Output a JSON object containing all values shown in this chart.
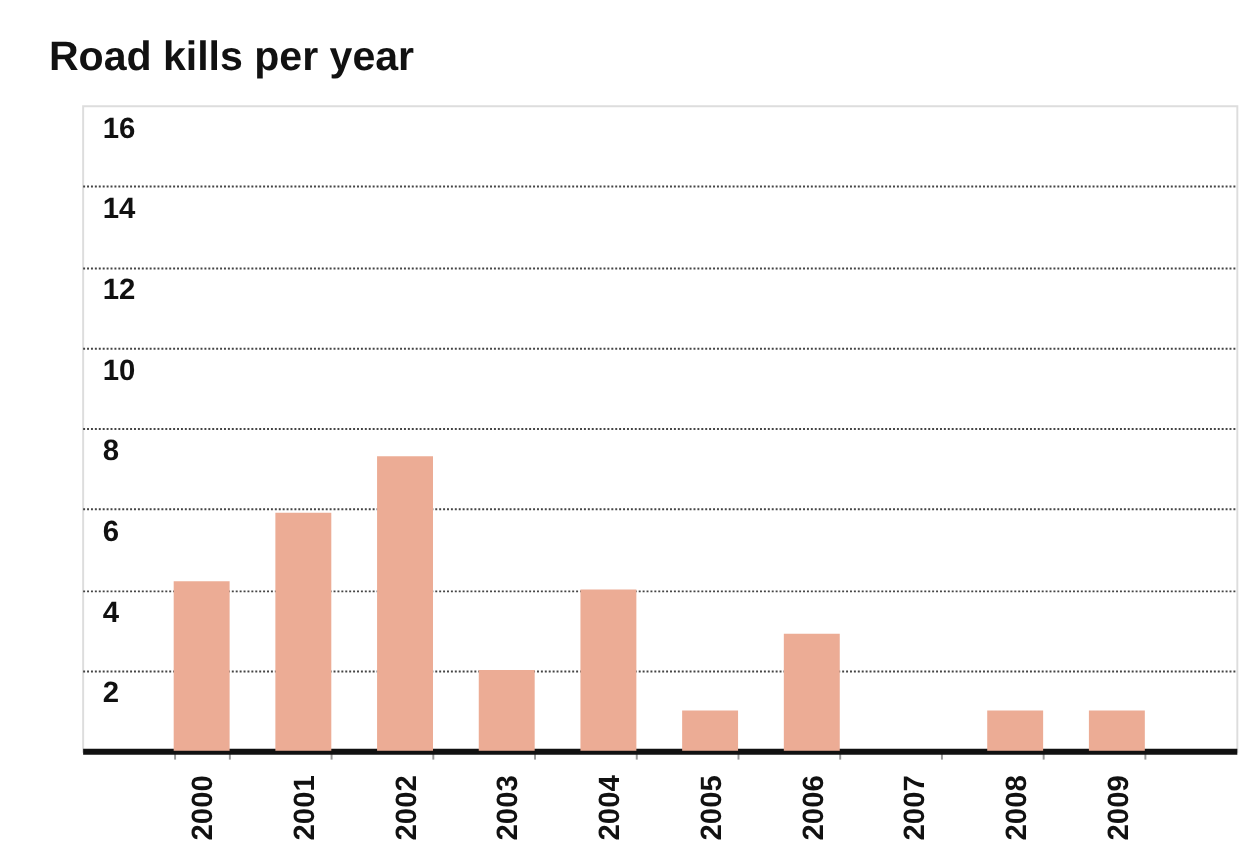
{
  "chart_data": {
    "type": "bar",
    "title": "Road kills per year",
    "categories": [
      "2000",
      "2001",
      "2002",
      "2003",
      "2004",
      "2005",
      "2006",
      "2007",
      "2008",
      "2009"
    ],
    "values": [
      4.2,
      5.9,
      7.3,
      2,
      4,
      1,
      2.9,
      0,
      1,
      1
    ],
    "color": "#ecac95",
    "ylim": [
      0,
      16
    ],
    "yticks": [
      2,
      4,
      6,
      8,
      10,
      12,
      14,
      16
    ],
    "grid": "y"
  }
}
